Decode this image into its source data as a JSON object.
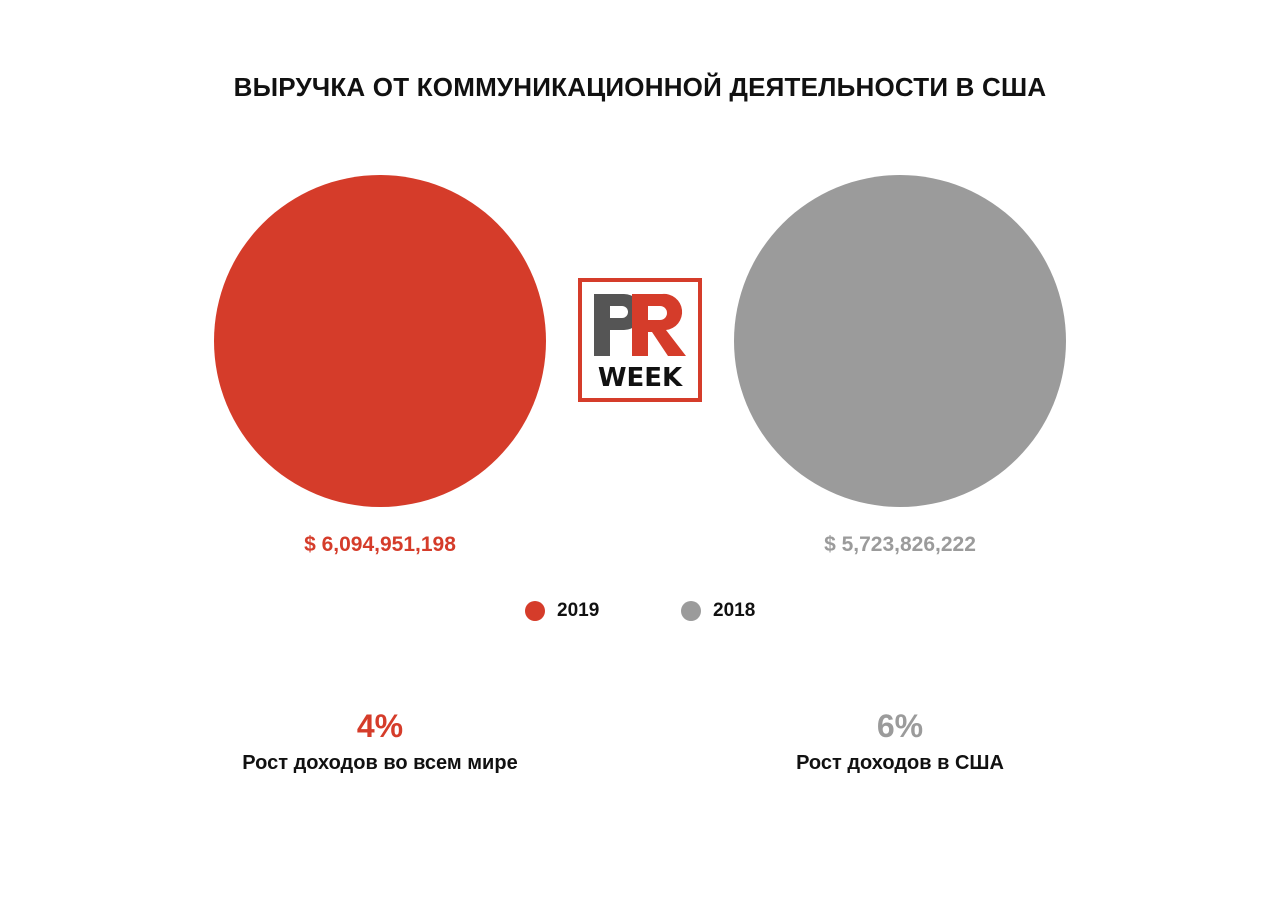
{
  "title": "ВЫРУЧКА ОТ КОММУНИКАЦИОННОЙ ДЕЯТЕЛЬНОСТИ В США",
  "colors": {
    "series_2019": "#d53c2a",
    "series_2018": "#9b9b9b",
    "text": "#111111"
  },
  "logo": {
    "icon": "pr-week-logo",
    "top_text": "PR",
    "bottom_text": "WEEK"
  },
  "chart_data": {
    "type": "bubble",
    "title": "ВЫРУЧКА ОТ КОММУНИКАЦИОННОЙ ДЕЯТЕЛЬНОСТИ В США",
    "series": [
      {
        "name": "2019",
        "value": 6094951198,
        "label": "$ 6,094,951,198",
        "color": "#d53c2a"
      },
      {
        "name": "2018",
        "value": 5723826222,
        "label": "$ 5,723,826,222",
        "color": "#9b9b9b"
      }
    ],
    "legend": {
      "placement": "bottom-center",
      "entries": [
        "2019",
        "2018"
      ]
    }
  },
  "stats": [
    {
      "value": "4%",
      "caption": "Рост доходов во всем мире",
      "color": "#d53c2a"
    },
    {
      "value": "6%",
      "caption": "Рост доходов в США",
      "color": "#9b9b9b"
    }
  ]
}
